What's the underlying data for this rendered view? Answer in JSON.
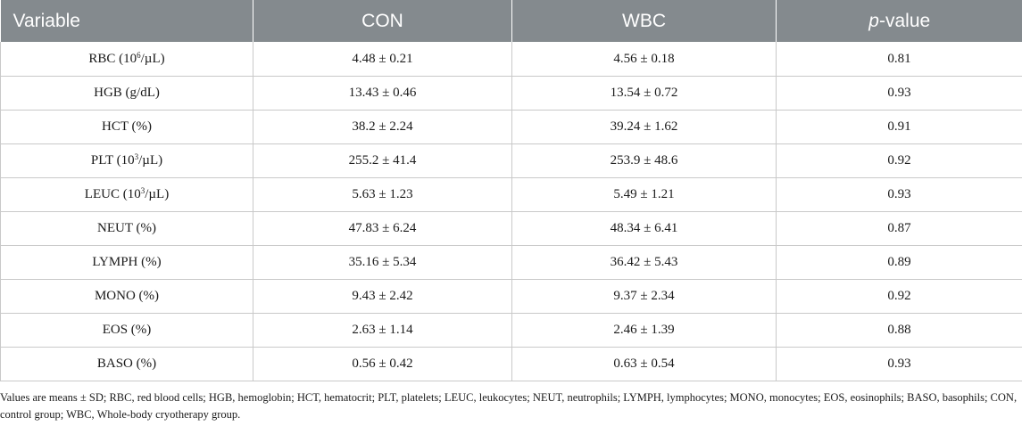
{
  "table": {
    "headers": {
      "variable": "Variable",
      "con": "CON",
      "wbc": "WBC",
      "p_prefix": "p",
      "p_suffix": "-value"
    },
    "rows": [
      {
        "name": "RBC (",
        "sup": "6",
        "base": "10",
        "unit_after": "/µL)",
        "con": "4.48 ± 0.21",
        "wbc": "4.56 ± 0.18",
        "p": "0.81"
      },
      {
        "name": "HGB (g/dL)",
        "con": "13.43 ± 0.46",
        "wbc": "13.54 ± 0.72",
        "p": "0.93"
      },
      {
        "name": "HCT (%)",
        "con": "38.2 ± 2.24",
        "wbc": "39.24 ± 1.62",
        "p": "0.91"
      },
      {
        "name": "PLT (",
        "sup": "3",
        "base": "10",
        "unit_after": "/µL)",
        "con": "255.2 ± 41.4",
        "wbc": "253.9 ± 48.6",
        "p": "0.92"
      },
      {
        "name": "LEUC (",
        "sup": "3",
        "base": "10",
        "unit_after": "/µL)",
        "con": "5.63 ± 1.23",
        "wbc": "5.49 ± 1.21",
        "p": "0.93"
      },
      {
        "name": "NEUT (%)",
        "con": "47.83 ± 6.24",
        "wbc": "48.34 ± 6.41",
        "p": "0.87"
      },
      {
        "name": "LYMPH (%)",
        "con": "35.16 ± 5.34",
        "wbc": "36.42 ± 5.43",
        "p": "0.89"
      },
      {
        "name": "MONO (%)",
        "con": "9.43 ± 2.42",
        "wbc": "9.37 ± 2.34",
        "p": "0.92"
      },
      {
        "name": "EOS (%)",
        "con": "2.63 ± 1.14",
        "wbc": "2.46 ± 1.39",
        "p": "0.88"
      },
      {
        "name": "BASO (%)",
        "con": "0.56 ± 0.42",
        "wbc": "0.63 ± 0.54",
        "p": "0.93"
      }
    ]
  },
  "footnote": "Values are means ± SD; RBC, red blood cells; HGB, hemoglobin; HCT, hematocrit; PLT, platelets; LEUC, leukocytes; NEUT, neutrophils; LYMPH, lymphocytes; MONO, monocytes; EOS, eosinophils; BASO, basophils; CON, control group; WBC, Whole-body cryotherapy group.",
  "colors": {
    "header_bg": "#848a8e",
    "header_text": "#ffffff",
    "grid": "#c9c9c9"
  }
}
